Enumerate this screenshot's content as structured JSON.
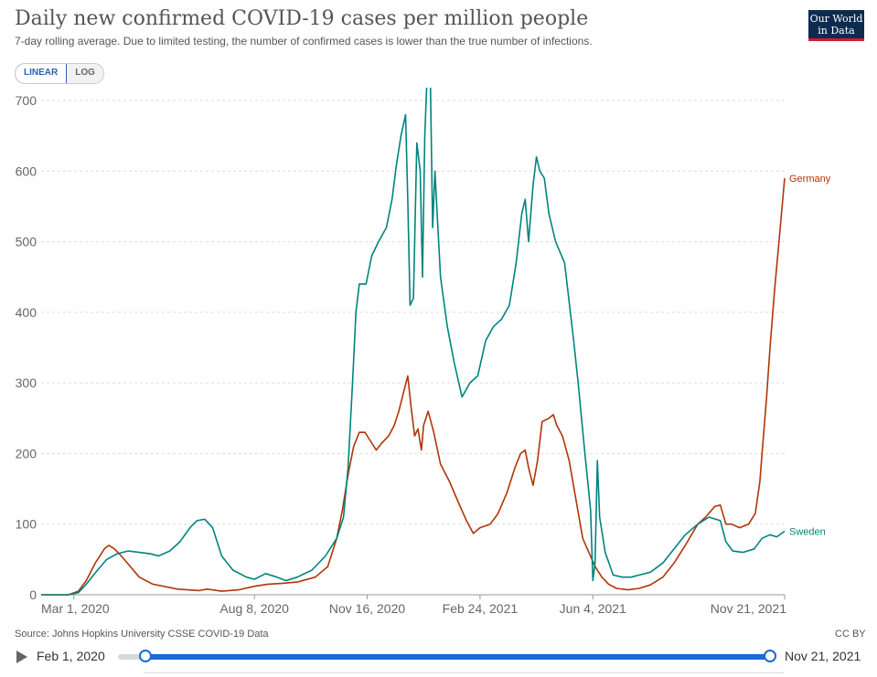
{
  "header": {
    "title": "Daily new confirmed COVID-19 cases per million people",
    "subtitle": "7-day rolling average. Due to limited testing, the number of confirmed cases is lower than the true number of infections.",
    "logo_line1": "Our World",
    "logo_line2": "in Data"
  },
  "scale_toggle": {
    "linear_label": "LINEAR",
    "log_label": "LOG",
    "selected": "LINEAR"
  },
  "footer": {
    "source": "Source: Johns Hopkins University CSSE COVID-19 Data",
    "license": "CC BY"
  },
  "timeline": {
    "start_label": "Feb 1, 2020",
    "end_label": "Nov 21, 2021",
    "selection_start_fraction": 0.0,
    "selection_end_fraction": 1.0
  },
  "colors": {
    "germany": "#b13507",
    "sweden": "#00847e",
    "grid": "#dddddd",
    "accent": "#1a6ad7"
  },
  "chart_data": {
    "type": "line",
    "title": "Daily new confirmed COVID-19 cases per million people",
    "subtitle": "7-day rolling average. Due to limited testing, the number of confirmed cases is lower than the true number of infections.",
    "xlabel": "",
    "ylabel": "",
    "ylim": [
      0,
      700
    ],
    "yticks": [
      0,
      100,
      200,
      300,
      400,
      500,
      600,
      700
    ],
    "xlim": [
      "2020-02-01",
      "2021-11-21"
    ],
    "xticks": [
      {
        "date": "2020-03-01",
        "label": "Mar 1, 2020"
      },
      {
        "date": "2020-08-08",
        "label": "Aug 8, 2020"
      },
      {
        "date": "2020-11-16",
        "label": "Nov 16, 2020"
      },
      {
        "date": "2021-02-24",
        "label": "Feb 24, 2021"
      },
      {
        "date": "2021-06-04",
        "label": "Jun 4, 2021"
      },
      {
        "date": "2021-11-21",
        "label": "Nov 21, 2021"
      }
    ],
    "grid": "horizontal dashed",
    "legend": "line-end labels",
    "series": [
      {
        "name": "Germany",
        "color": "#b13507",
        "points": [
          [
            "2020-02-01",
            0
          ],
          [
            "2020-02-25",
            0
          ],
          [
            "2020-03-05",
            5
          ],
          [
            "2020-03-12",
            20
          ],
          [
            "2020-03-20",
            45
          ],
          [
            "2020-03-28",
            65
          ],
          [
            "2020-04-01",
            70
          ],
          [
            "2020-04-06",
            65
          ],
          [
            "2020-04-12",
            55
          ],
          [
            "2020-04-20",
            40
          ],
          [
            "2020-04-28",
            25
          ],
          [
            "2020-05-10",
            15
          ],
          [
            "2020-06-01",
            8
          ],
          [
            "2020-06-20",
            6
          ],
          [
            "2020-06-27",
            8
          ],
          [
            "2020-07-10",
            5
          ],
          [
            "2020-07-25",
            7
          ],
          [
            "2020-08-08",
            12
          ],
          [
            "2020-08-20",
            15
          ],
          [
            "2020-09-01",
            16
          ],
          [
            "2020-09-15",
            18
          ],
          [
            "2020-10-01",
            25
          ],
          [
            "2020-10-12",
            40
          ],
          [
            "2020-10-20",
            80
          ],
          [
            "2020-10-25",
            120
          ],
          [
            "2020-10-30",
            170
          ],
          [
            "2020-11-04",
            210
          ],
          [
            "2020-11-09",
            230
          ],
          [
            "2020-11-14",
            230
          ],
          [
            "2020-11-18",
            220
          ],
          [
            "2020-11-24",
            205
          ],
          [
            "2020-11-29",
            215
          ],
          [
            "2020-12-05",
            225
          ],
          [
            "2020-12-10",
            240
          ],
          [
            "2020-12-14",
            260
          ],
          [
            "2020-12-18",
            285
          ],
          [
            "2020-12-22",
            310
          ],
          [
            "2020-12-25",
            265
          ],
          [
            "2020-12-28",
            225
          ],
          [
            "2020-12-31",
            235
          ],
          [
            "2021-01-03",
            205
          ],
          [
            "2021-01-05",
            240
          ],
          [
            "2021-01-09",
            260
          ],
          [
            "2021-01-14",
            230
          ],
          [
            "2021-01-20",
            185
          ],
          [
            "2021-01-28",
            160
          ],
          [
            "2021-02-05",
            130
          ],
          [
            "2021-02-12",
            105
          ],
          [
            "2021-02-18",
            87
          ],
          [
            "2021-02-24",
            95
          ],
          [
            "2021-03-05",
            100
          ],
          [
            "2021-03-12",
            115
          ],
          [
            "2021-03-20",
            145
          ],
          [
            "2021-03-27",
            180
          ],
          [
            "2021-04-01",
            200
          ],
          [
            "2021-04-05",
            205
          ],
          [
            "2021-04-08",
            180
          ],
          [
            "2021-04-12",
            155
          ],
          [
            "2021-04-16",
            190
          ],
          [
            "2021-04-20",
            245
          ],
          [
            "2021-04-26",
            250
          ],
          [
            "2021-04-30",
            255
          ],
          [
            "2021-05-03",
            240
          ],
          [
            "2021-05-08",
            225
          ],
          [
            "2021-05-14",
            190
          ],
          [
            "2021-05-20",
            135
          ],
          [
            "2021-05-26",
            80
          ],
          [
            "2021-06-01",
            58
          ],
          [
            "2021-06-06",
            40
          ],
          [
            "2021-06-12",
            25
          ],
          [
            "2021-06-18",
            15
          ],
          [
            "2021-06-25",
            9
          ],
          [
            "2021-07-05",
            7
          ],
          [
            "2021-07-15",
            9
          ],
          [
            "2021-07-25",
            14
          ],
          [
            "2021-08-05",
            25
          ],
          [
            "2021-08-15",
            45
          ],
          [
            "2021-08-25",
            70
          ],
          [
            "2021-09-05",
            100
          ],
          [
            "2021-09-12",
            110
          ],
          [
            "2021-09-20",
            125
          ],
          [
            "2021-09-25",
            127
          ],
          [
            "2021-09-30",
            100
          ],
          [
            "2021-10-05",
            100
          ],
          [
            "2021-10-12",
            95
          ],
          [
            "2021-10-20",
            100
          ],
          [
            "2021-10-26",
            115
          ],
          [
            "2021-10-30",
            160
          ],
          [
            "2021-11-01",
            200
          ],
          [
            "2021-11-03",
            240
          ],
          [
            "2021-11-05",
            280
          ],
          [
            "2021-11-08",
            350
          ],
          [
            "2021-11-12",
            430
          ],
          [
            "2021-11-16",
            500
          ],
          [
            "2021-11-21",
            590
          ]
        ]
      },
      {
        "name": "Sweden",
        "color": "#00847e",
        "points": [
          [
            "2020-02-01",
            0
          ],
          [
            "2020-02-25",
            0
          ],
          [
            "2020-03-05",
            3
          ],
          [
            "2020-03-12",
            15
          ],
          [
            "2020-03-22",
            35
          ],
          [
            "2020-03-30",
            50
          ],
          [
            "2020-04-08",
            58
          ],
          [
            "2020-04-18",
            62
          ],
          [
            "2020-04-28",
            60
          ],
          [
            "2020-05-08",
            58
          ],
          [
            "2020-05-15",
            55
          ],
          [
            "2020-05-25",
            62
          ],
          [
            "2020-06-03",
            75
          ],
          [
            "2020-06-12",
            95
          ],
          [
            "2020-06-18",
            105
          ],
          [
            "2020-06-25",
            107
          ],
          [
            "2020-07-02",
            95
          ],
          [
            "2020-07-10",
            55
          ],
          [
            "2020-07-20",
            35
          ],
          [
            "2020-08-01",
            25
          ],
          [
            "2020-08-08",
            22
          ],
          [
            "2020-08-18",
            30
          ],
          [
            "2020-08-28",
            25
          ],
          [
            "2020-09-05",
            20
          ],
          [
            "2020-09-15",
            25
          ],
          [
            "2020-09-28",
            35
          ],
          [
            "2020-10-10",
            55
          ],
          [
            "2020-10-20",
            80
          ],
          [
            "2020-10-26",
            110
          ],
          [
            "2020-10-30",
            180
          ],
          [
            "2020-11-03",
            300
          ],
          [
            "2020-11-06",
            400
          ],
          [
            "2020-11-09",
            440
          ],
          [
            "2020-11-15",
            440
          ],
          [
            "2020-11-20",
            480
          ],
          [
            "2020-11-26",
            500
          ],
          [
            "2020-12-03",
            520
          ],
          [
            "2020-12-08",
            560
          ],
          [
            "2020-12-12",
            610
          ],
          [
            "2020-12-16",
            650
          ],
          [
            "2020-12-20",
            680
          ],
          [
            "2020-12-22",
            560
          ],
          [
            "2020-12-24",
            410
          ],
          [
            "2020-12-27",
            420
          ],
          [
            "2020-12-30",
            640
          ],
          [
            "2021-01-02",
            600
          ],
          [
            "2021-01-04",
            450
          ],
          [
            "2021-01-06",
            650
          ],
          [
            "2021-01-08",
            730
          ],
          [
            "2021-01-11",
            730
          ],
          [
            "2021-01-13",
            520
          ],
          [
            "2021-01-15",
            600
          ],
          [
            "2021-01-20",
            450
          ],
          [
            "2021-01-26",
            380
          ],
          [
            "2021-02-01",
            330
          ],
          [
            "2021-02-08",
            280
          ],
          [
            "2021-02-15",
            300
          ],
          [
            "2021-02-22",
            310
          ],
          [
            "2021-03-01",
            360
          ],
          [
            "2021-03-08",
            380
          ],
          [
            "2021-03-15",
            390
          ],
          [
            "2021-03-22",
            410
          ],
          [
            "2021-03-28",
            470
          ],
          [
            "2021-04-02",
            540
          ],
          [
            "2021-04-05",
            560
          ],
          [
            "2021-04-08",
            500
          ],
          [
            "2021-04-12",
            580
          ],
          [
            "2021-04-15",
            620
          ],
          [
            "2021-04-18",
            600
          ],
          [
            "2021-04-22",
            590
          ],
          [
            "2021-04-26",
            540
          ],
          [
            "2021-05-02",
            500
          ],
          [
            "2021-05-10",
            470
          ],
          [
            "2021-05-18",
            360
          ],
          [
            "2021-05-22",
            300
          ],
          [
            "2021-05-28",
            200
          ],
          [
            "2021-06-02",
            120
          ],
          [
            "2021-06-04",
            20
          ],
          [
            "2021-06-06",
            45
          ],
          [
            "2021-06-08",
            190
          ],
          [
            "2021-06-10",
            110
          ],
          [
            "2021-06-15",
            60
          ],
          [
            "2021-06-22",
            28
          ],
          [
            "2021-06-30",
            25
          ],
          [
            "2021-07-08",
            25
          ],
          [
            "2021-07-15",
            28
          ],
          [
            "2021-07-25",
            32
          ],
          [
            "2021-08-05",
            45
          ],
          [
            "2021-08-15",
            65
          ],
          [
            "2021-08-25",
            85
          ],
          [
            "2021-09-05",
            100
          ],
          [
            "2021-09-15",
            110
          ],
          [
            "2021-09-25",
            105
          ],
          [
            "2021-09-30",
            75
          ],
          [
            "2021-10-06",
            62
          ],
          [
            "2021-10-15",
            60
          ],
          [
            "2021-10-25",
            65
          ],
          [
            "2021-11-01",
            80
          ],
          [
            "2021-11-08",
            85
          ],
          [
            "2021-11-14",
            82
          ],
          [
            "2021-11-21",
            90
          ]
        ]
      }
    ]
  }
}
